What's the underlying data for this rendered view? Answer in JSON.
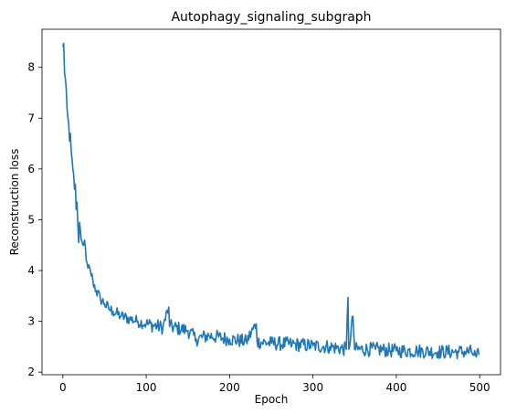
{
  "chart_data": {
    "type": "line",
    "title": "Autophagy_signaling_subgraph",
    "xlabel": "Epoch",
    "ylabel": "Reconstruction loss",
    "xlim": [
      -25,
      525
    ],
    "ylim": [
      1.95,
      8.75
    ],
    "xticks": [
      0,
      100,
      200,
      300,
      400,
      500
    ],
    "yticks": [
      2,
      3,
      4,
      5,
      6,
      7,
      8
    ],
    "grid": false,
    "legend": "none",
    "series": [
      {
        "color": "#1f77b4",
        "key_points": [
          [
            0,
            8.42
          ],
          [
            1,
            8.47
          ],
          [
            2,
            7.9
          ],
          [
            4,
            7.6
          ],
          [
            5,
            7.2
          ],
          [
            7,
            6.9
          ],
          [
            8,
            6.55
          ],
          [
            9,
            6.7
          ],
          [
            10,
            6.35
          ],
          [
            12,
            6.0
          ],
          [
            14,
            5.6
          ],
          [
            15,
            5.7
          ],
          [
            16,
            5.2
          ],
          [
            17,
            5.35
          ],
          [
            18,
            4.9
          ],
          [
            19,
            4.55
          ],
          [
            20,
            4.95
          ],
          [
            22,
            4.6
          ],
          [
            24,
            4.5
          ],
          [
            26,
            4.6
          ],
          [
            28,
            4.2
          ],
          [
            30,
            4.05
          ],
          [
            33,
            4.0
          ],
          [
            36,
            3.8
          ],
          [
            40,
            3.6
          ],
          [
            45,
            3.45
          ],
          [
            50,
            3.35
          ],
          [
            55,
            3.25
          ],
          [
            60,
            3.2
          ],
          [
            70,
            3.1
          ],
          [
            80,
            3.05
          ],
          [
            90,
            3.0
          ],
          [
            100,
            2.95
          ],
          [
            120,
            2.88
          ],
          [
            127,
            3.28
          ],
          [
            128,
            2.9
          ],
          [
            150,
            2.82
          ],
          [
            160,
            2.65
          ],
          [
            175,
            2.72
          ],
          [
            200,
            2.65
          ],
          [
            220,
            2.6
          ],
          [
            232,
            2.95
          ],
          [
            233,
            2.6
          ],
          [
            250,
            2.57
          ],
          [
            275,
            2.55
          ],
          [
            300,
            2.52
          ],
          [
            320,
            2.5
          ],
          [
            340,
            2.45
          ],
          [
            342,
            3.47
          ],
          [
            343,
            2.45
          ],
          [
            348,
            3.1
          ],
          [
            350,
            2.45
          ],
          [
            375,
            2.45
          ],
          [
            400,
            2.42
          ],
          [
            425,
            2.42
          ],
          [
            450,
            2.4
          ],
          [
            475,
            2.4
          ],
          [
            490,
            2.4
          ],
          [
            496,
            2.3
          ],
          [
            499,
            2.35
          ]
        ]
      }
    ]
  }
}
